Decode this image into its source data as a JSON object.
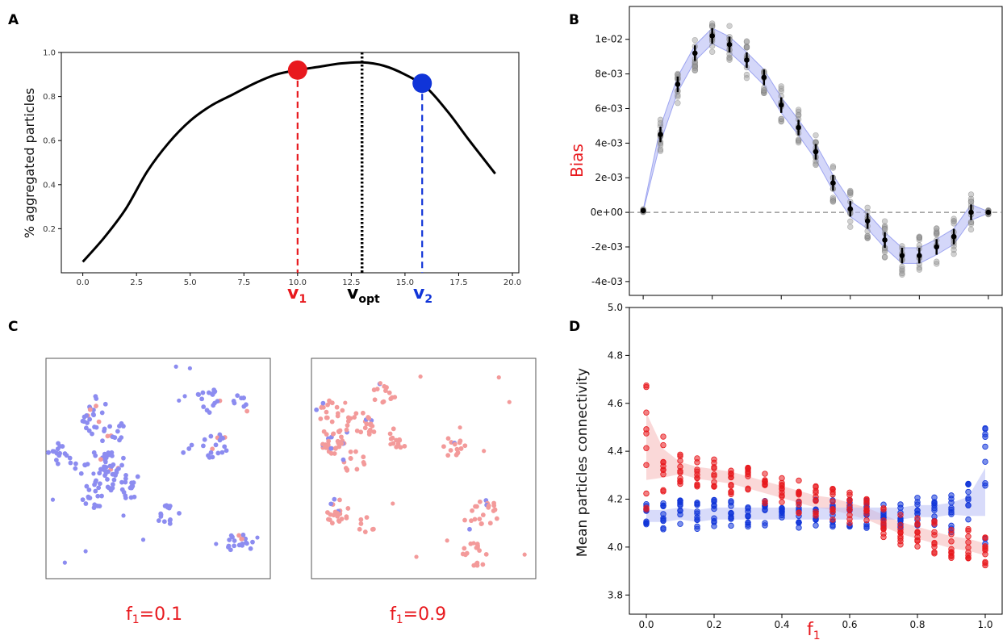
{
  "panel_labels": [
    "A",
    "B",
    "C",
    "D"
  ],
  "colors": {
    "red": "#e8191e",
    "blue": "#1034d8",
    "pink": "#f39a9a",
    "lavender": "#8c8cf0",
    "band_blue": "#b8bdf5",
    "band_red": "#f5b8b8"
  },
  "chart_data": [
    {
      "id": "A",
      "type": "line",
      "ylabel": "% aggregated particles",
      "xlabel": "",
      "xlim": [
        -1,
        20.3
      ],
      "ylim": [
        0,
        1.0
      ],
      "xticks": [
        "0.0",
        "2.5",
        "5.0",
        "7.5",
        "10.0",
        "12.5",
        "15.0",
        "17.5",
        "20.0"
      ],
      "xtick_values": [
        0,
        2.5,
        5,
        7.5,
        10,
        12.5,
        15,
        17.5,
        20
      ],
      "yticks": [
        "0.2",
        "0.4",
        "0.6",
        "0.8",
        "1.0"
      ],
      "ytick_values": [
        0.2,
        0.4,
        0.6,
        0.8,
        1.0
      ],
      "x": [
        0,
        1,
        2,
        3,
        4,
        5,
        6,
        7,
        8,
        9,
        10,
        11,
        12,
        13,
        14,
        15,
        16,
        17,
        18,
        19.2
      ],
      "y": [
        0.05,
        0.16,
        0.29,
        0.46,
        0.59,
        0.69,
        0.76,
        0.81,
        0.86,
        0.9,
        0.92,
        0.935,
        0.95,
        0.955,
        0.94,
        0.9,
        0.84,
        0.73,
        0.6,
        0.45
      ],
      "markers": [
        {
          "name": "v1",
          "label": "v",
          "sub": "1",
          "x": 10.0,
          "y": 0.92,
          "color": "#e8191e",
          "line": "dashed"
        },
        {
          "name": "vopt",
          "label": "v",
          "sub": "opt",
          "x": 13.0,
          "y": 0.955,
          "color": "#000000",
          "line": "dotted"
        },
        {
          "name": "v2",
          "label": "v",
          "sub": "2",
          "x": 15.8,
          "y": 0.86,
          "color": "#1034d8",
          "line": "dashed"
        }
      ]
    },
    {
      "id": "B",
      "type": "scatter",
      "ylabel": "Bias",
      "xlim": [
        -0.04,
        1.04
      ],
      "ylim": [
        -0.0048,
        0.0119
      ],
      "yticks": [
        "1e-02",
        "8e-03",
        "6e-03",
        "4e-03",
        "2e-03",
        "0e+00",
        "-2e-03",
        "-4e-03"
      ],
      "ytick_values": [
        0.01,
        0.008,
        0.006,
        0.004,
        0.002,
        0,
        -0.002,
        -0.004
      ],
      "x": [
        0,
        0.05,
        0.1,
        0.15,
        0.2,
        0.25,
        0.3,
        0.35,
        0.4,
        0.45,
        0.5,
        0.55,
        0.6,
        0.65,
        0.7,
        0.75,
        0.8,
        0.85,
        0.9,
        0.95,
        1.0
      ],
      "mean": [
        0.0001,
        0.0045,
        0.0074,
        0.0092,
        0.0102,
        0.0097,
        0.0088,
        0.0078,
        0.0062,
        0.0049,
        0.0035,
        0.0017,
        0.0002,
        -0.0005,
        -0.0016,
        -0.0025,
        -0.0025,
        -0.002,
        -0.0014,
        0.0,
        0.0
      ],
      "reference_line": 0
    },
    {
      "id": "D",
      "type": "scatter",
      "ylabel": "Mean particles connectivity",
      "xlabel": "f1",
      "xlim": [
        -0.05,
        1.05
      ],
      "ylim": [
        3.72,
        5.0
      ],
      "xticks": [
        "0.0",
        "0.2",
        "0.4",
        "0.6",
        "0.8",
        "1.0"
      ],
      "xtick_values": [
        0,
        0.2,
        0.4,
        0.6,
        0.8,
        1.0
      ],
      "yticks": [
        "5.0",
        "4.8",
        "4.6",
        "4.4",
        "4.2",
        "4.0",
        "3.8"
      ],
      "ytick_values": [
        5.0,
        4.8,
        4.6,
        4.4,
        4.2,
        4.0,
        3.8
      ],
      "x": [
        0,
        0.05,
        0.1,
        0.15,
        0.2,
        0.25,
        0.3,
        0.35,
        0.4,
        0.45,
        0.5,
        0.55,
        0.6,
        0.65,
        0.7,
        0.75,
        0.8,
        0.85,
        0.9,
        0.95,
        1.0
      ],
      "series": [
        {
          "name": "red",
          "color": "#e8191e",
          "mean": [
            4.42,
            4.35,
            4.33,
            4.31,
            4.3,
            4.29,
            4.27,
            4.25,
            4.23,
            4.21,
            4.19,
            4.18,
            4.16,
            4.14,
            4.11,
            4.08,
            4.06,
            4.04,
            4.02,
            4.01,
            3.99
          ]
        },
        {
          "name": "blue",
          "color": "#1034d8",
          "mean": [
            4.13,
            4.13,
            4.14,
            4.13,
            4.14,
            4.14,
            4.14,
            4.14,
            4.14,
            4.14,
            4.14,
            4.14,
            4.14,
            4.14,
            4.14,
            4.14,
            4.15,
            4.15,
            4.16,
            4.17,
            4.23
          ]
        }
      ]
    }
  ],
  "panelA": {
    "v1": {
      "main": "v",
      "sub": "1"
    },
    "vopt": {
      "main": "v",
      "sub": "opt"
    },
    "v2": {
      "main": "v",
      "sub": "2"
    }
  },
  "panelC": {
    "left_caption": {
      "main": "f",
      "sub": "1",
      "rest": "=0.1"
    },
    "right_caption": {
      "main": "f",
      "sub": "1",
      "rest": "=0.9"
    }
  },
  "panelD": {
    "xlabel_main": "f",
    "xlabel_sub": "1"
  }
}
